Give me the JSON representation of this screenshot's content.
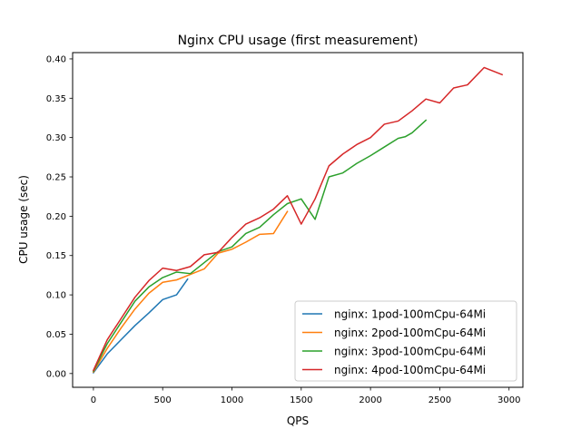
{
  "chart_data": {
    "type": "line",
    "title": "Nginx CPU usage (first measurement)",
    "xlabel": "QPS",
    "ylabel": "CPU usage (sec)",
    "xlim": [
      -150,
      3100
    ],
    "ylim": [
      -0.0175,
      0.408
    ],
    "xticks": [
      0,
      500,
      1000,
      1500,
      2000,
      2500,
      3000
    ],
    "xtick_labels": [
      "0",
      "500",
      "1000",
      "1500",
      "2000",
      "2500",
      "3000"
    ],
    "yticks": [
      0.0,
      0.05,
      0.1,
      0.15,
      0.2,
      0.25,
      0.3,
      0.35,
      0.4
    ],
    "ytick_labels": [
      "0.00",
      "0.05",
      "0.10",
      "0.15",
      "0.20",
      "0.25",
      "0.30",
      "0.35",
      "0.40"
    ],
    "grid": false,
    "legend_position": "lower-right",
    "series": [
      {
        "name": "nginx: 1pod-100mCpu-64Mi",
        "color": "#1f77b4",
        "points": [
          [
            0,
            0.001
          ],
          [
            100,
            0.025
          ],
          [
            200,
            0.043
          ],
          [
            300,
            0.061
          ],
          [
            400,
            0.077
          ],
          [
            500,
            0.094
          ],
          [
            600,
            0.1
          ],
          [
            680,
            0.12
          ]
        ]
      },
      {
        "name": "nginx: 2pod-100mCpu-64Mi",
        "color": "#ff7f0e",
        "points": [
          [
            0,
            0.002
          ],
          [
            100,
            0.032
          ],
          [
            200,
            0.058
          ],
          [
            300,
            0.082
          ],
          [
            400,
            0.102
          ],
          [
            500,
            0.116
          ],
          [
            600,
            0.119
          ],
          [
            700,
            0.126
          ],
          [
            800,
            0.133
          ],
          [
            900,
            0.153
          ],
          [
            1000,
            0.158
          ],
          [
            1100,
            0.167
          ],
          [
            1200,
            0.177
          ],
          [
            1300,
            0.178
          ],
          [
            1400,
            0.206
          ]
        ]
      },
      {
        "name": "nginx: 3pod-100mCpu-64Mi",
        "color": "#2ca02c",
        "points": [
          [
            0,
            0.003
          ],
          [
            100,
            0.038
          ],
          [
            200,
            0.065
          ],
          [
            300,
            0.092
          ],
          [
            400,
            0.11
          ],
          [
            500,
            0.122
          ],
          [
            600,
            0.129
          ],
          [
            700,
            0.127
          ],
          [
            800,
            0.141
          ],
          [
            900,
            0.155
          ],
          [
            1000,
            0.161
          ],
          [
            1100,
            0.178
          ],
          [
            1200,
            0.186
          ],
          [
            1300,
            0.202
          ],
          [
            1400,
            0.216
          ],
          [
            1500,
            0.222
          ],
          [
            1600,
            0.196
          ],
          [
            1700,
            0.25
          ],
          [
            1800,
            0.255
          ],
          [
            1900,
            0.267
          ],
          [
            2000,
            0.277
          ],
          [
            2100,
            0.288
          ],
          [
            2200,
            0.299
          ],
          [
            2250,
            0.301
          ],
          [
            2300,
            0.306
          ],
          [
            2400,
            0.322
          ]
        ]
      },
      {
        "name": "nginx: 4pod-100mCpu-64Mi",
        "color": "#d62728",
        "points": [
          [
            0,
            0.004
          ],
          [
            100,
            0.043
          ],
          [
            200,
            0.07
          ],
          [
            300,
            0.097
          ],
          [
            400,
            0.118
          ],
          [
            500,
            0.134
          ],
          [
            600,
            0.131
          ],
          [
            700,
            0.136
          ],
          [
            800,
            0.151
          ],
          [
            900,
            0.154
          ],
          [
            1000,
            0.173
          ],
          [
            1100,
            0.19
          ],
          [
            1200,
            0.198
          ],
          [
            1300,
            0.209
          ],
          [
            1400,
            0.226
          ],
          [
            1500,
            0.19
          ],
          [
            1600,
            0.222
          ],
          [
            1700,
            0.264
          ],
          [
            1800,
            0.279
          ],
          [
            1900,
            0.291
          ],
          [
            2000,
            0.3
          ],
          [
            2100,
            0.317
          ],
          [
            2200,
            0.321
          ],
          [
            2300,
            0.334
          ],
          [
            2400,
            0.349
          ],
          [
            2500,
            0.344
          ],
          [
            2600,
            0.363
          ],
          [
            2700,
            0.367
          ],
          [
            2820,
            0.389
          ],
          [
            2950,
            0.38
          ]
        ]
      }
    ]
  }
}
